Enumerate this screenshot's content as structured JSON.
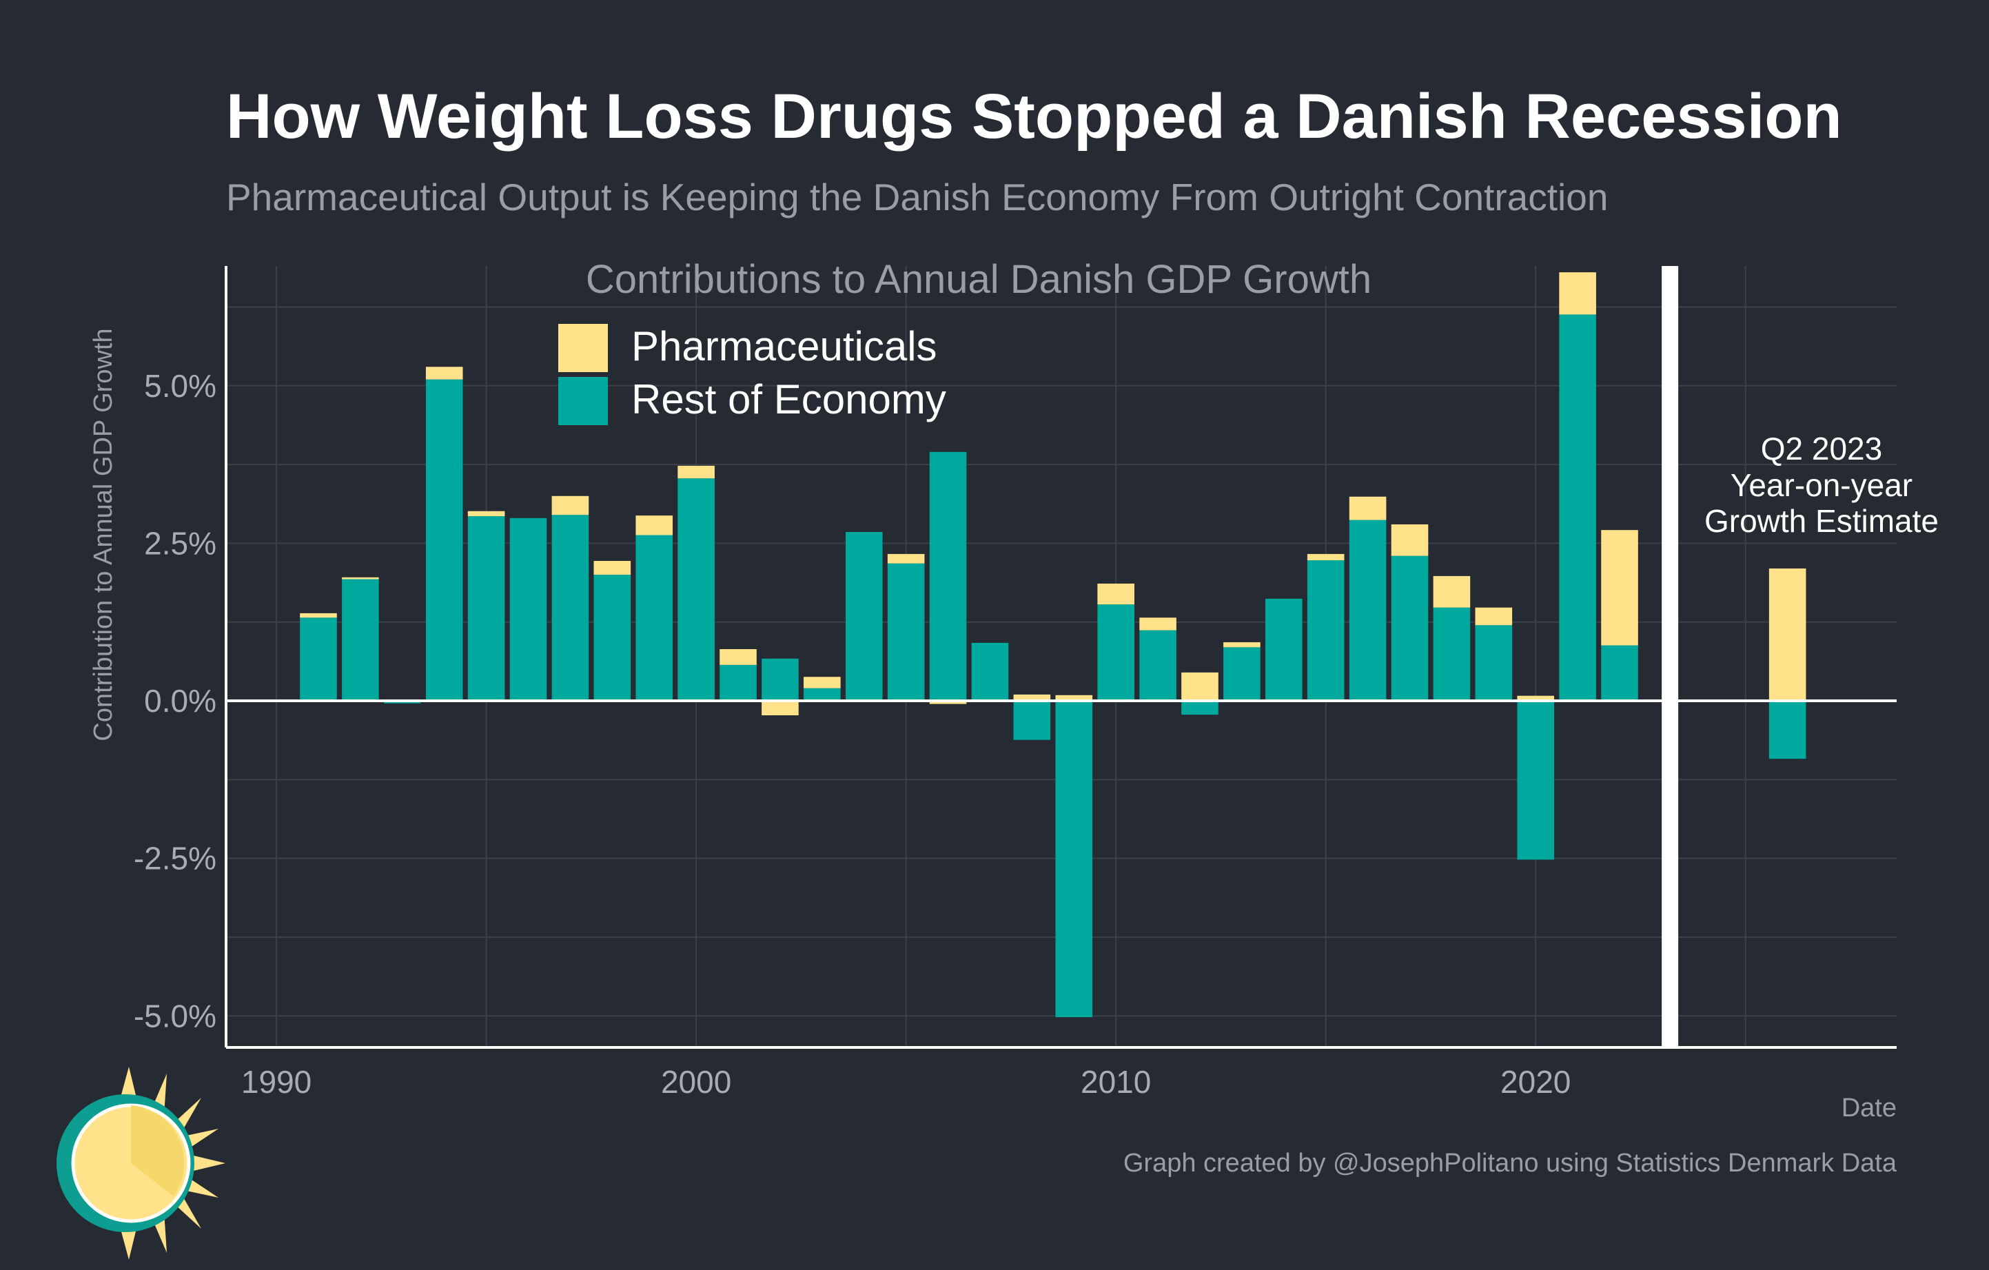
{
  "title": "How Weight Loss Drugs Stopped a Danish Recession",
  "subtitle": "Pharmaceutical Output is Keeping the Danish Economy From Outright Contraction",
  "chart_title": "Contributions to Annual Danish GDP Growth",
  "ylabel": "Contribution to Annual GDP Growth",
  "xlabel": "Date",
  "credit": "Graph created by @JosephPolitano using Statistics Denmark Data",
  "annotation": [
    "Q2 2023",
    "Year-on-year",
    "Growth Estimate"
  ],
  "colors": {
    "background": "#252a33",
    "pharma": "#ffe28a",
    "rest": "#00a99d",
    "grid": "#3b404a",
    "axis": "#ffffff"
  },
  "chart_data": {
    "type": "bar",
    "stacked": true,
    "x_tick_labels": [
      "1990",
      "2000",
      "2010",
      "2020"
    ],
    "y_tick_labels": [
      "5.0%",
      "2.5%",
      "0.0%",
      "-2.5%",
      "-5.0%"
    ],
    "xlim": [
      1988.8,
      2028.6
    ],
    "ylim": [
      -5.5,
      6.9
    ],
    "legend": [
      "Pharmaceuticals",
      "Rest of Economy"
    ],
    "legend_position": "top-left",
    "grid": true,
    "categories": [
      1991,
      1992,
      1993,
      1994,
      1995,
      1996,
      1997,
      1998,
      1999,
      2000,
      2001,
      2002,
      2003,
      2004,
      2005,
      2006,
      2007,
      2008,
      2009,
      2010,
      2011,
      2012,
      2013,
      2014,
      2015,
      2016,
      2017,
      2018,
      2019,
      2020,
      2021,
      2022
    ],
    "series": [
      {
        "name": "Rest of Economy",
        "values": [
          1.32,
          1.93,
          -0.04,
          5.1,
          2.93,
          2.9,
          2.95,
          2.0,
          2.63,
          3.53,
          0.57,
          0.67,
          0.2,
          2.68,
          2.18,
          3.95,
          0.92,
          -0.62,
          -5.02,
          1.53,
          1.12,
          -0.22,
          0.85,
          1.62,
          2.23,
          2.87,
          2.3,
          1.48,
          1.2,
          -2.52,
          6.13,
          0.88
        ]
      },
      {
        "name": "Pharmaceuticals",
        "values": [
          0.07,
          0.03,
          0.0,
          0.2,
          0.08,
          0.0,
          0.3,
          0.22,
          0.31,
          0.2,
          0.25,
          -0.23,
          0.18,
          0.0,
          0.15,
          -0.05,
          0.0,
          0.1,
          0.09,
          0.33,
          0.2,
          0.45,
          0.08,
          0.0,
          0.1,
          0.37,
          0.5,
          0.5,
          0.28,
          0.08,
          0.67,
          1.83
        ]
      }
    ],
    "estimate": {
      "x": 2026.0,
      "label": "Q2 2023 Year-on-year Growth Estimate",
      "rest": -0.92,
      "pharma": 2.1
    },
    "divider_x": 2023.2
  }
}
